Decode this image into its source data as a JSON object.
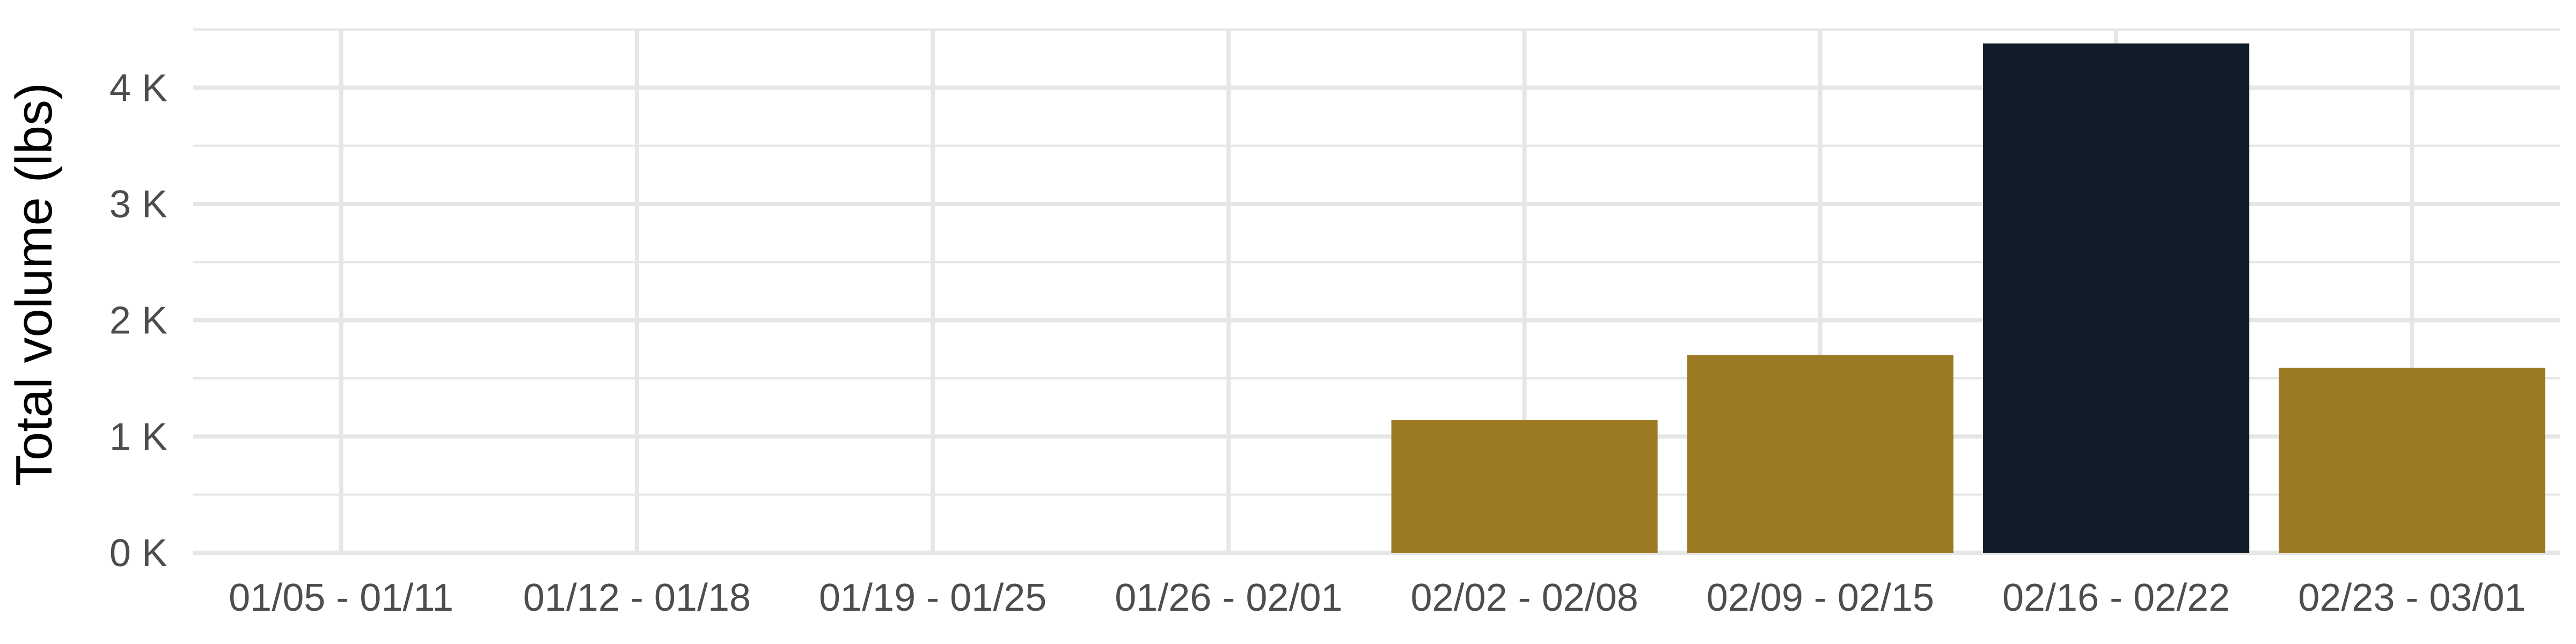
{
  "chart_data": {
    "type": "bar",
    "title": "",
    "xlabel": "",
    "ylabel": "Total volume (lbs)",
    "categories": [
      "01/05 - 01/11",
      "01/12 - 01/18",
      "01/19 - 01/25",
      "01/26 - 02/01",
      "02/02 - 02/08",
      "02/09 - 02/15",
      "02/16 - 02/22",
      "02/23 - 03/01"
    ],
    "values": [
      0,
      0,
      0,
      0,
      1140,
      1700,
      4380,
      1590
    ],
    "bar_colors": [
      "#9c7a24",
      "#9c7a24",
      "#9c7a24",
      "#9c7a24",
      "#9c7a24",
      "#9c7a24",
      "#101c28",
      "#9c7a24"
    ],
    "ylim": [
      0,
      4500
    ],
    "yticks": [
      0,
      1000,
      2000,
      3000,
      4000
    ],
    "ytick_labels": [
      "0 K",
      "1 K",
      "2 K",
      "3 K",
      "4 K"
    ],
    "grid": true,
    "legend": "none"
  },
  "colors": {
    "highlight": "#101c28",
    "default": "#9c7a24",
    "grid": "#e6e6e6",
    "tick_text": "#4d4d4d"
  }
}
